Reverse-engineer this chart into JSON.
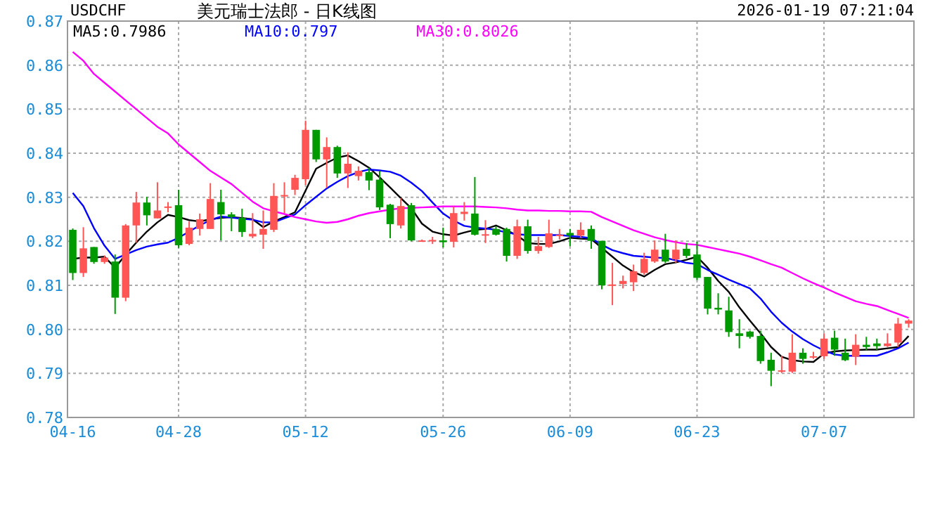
{
  "chart_data": {
    "type": "candlestick",
    "title": "美元瑞士法郎 - 日K线图",
    "annotations": [
      "USDCHF",
      "2026-01-19 07:21:04"
    ],
    "categories": [
      "04-16",
      null,
      null,
      null,
      null,
      null,
      null,
      null,
      null,
      null,
      "04-28",
      null,
      null,
      null,
      null,
      null,
      null,
      null,
      null,
      null,
      null,
      null,
      "05-12",
      null,
      null,
      null,
      null,
      null,
      null,
      null,
      null,
      null,
      null,
      null,
      null,
      "05-26",
      null,
      null,
      null,
      null,
      null,
      null,
      null,
      null,
      null,
      null,
      null,
      "06-09",
      null,
      null,
      null,
      null,
      null,
      null,
      null,
      null,
      null,
      null,
      null,
      "06-23",
      null,
      null,
      null,
      null,
      null,
      null,
      null,
      null,
      null,
      null,
      null,
      "07-07",
      null,
      null,
      null,
      null,
      null,
      null,
      null,
      null
    ],
    "ohlc": [
      [
        0.8226,
        0.8229,
        0.8112,
        0.8128
      ],
      [
        0.8128,
        0.8232,
        0.8119,
        0.8184
      ],
      [
        0.8187,
        0.8187,
        0.8149,
        0.8153
      ],
      [
        0.8153,
        0.8168,
        0.8149,
        0.8163
      ],
      [
        0.8154,
        0.817,
        0.8035,
        0.8072
      ],
      [
        0.8072,
        0.8239,
        0.8064,
        0.8236
      ],
      [
        0.8236,
        0.8312,
        0.8197,
        0.8288
      ],
      [
        0.8288,
        0.8301,
        0.8236,
        0.8259
      ],
      [
        0.8252,
        0.8334,
        0.8252,
        0.827
      ],
      [
        0.8277,
        0.8289,
        0.8266,
        0.8279
      ],
      [
        0.8282,
        0.8317,
        0.8185,
        0.8191
      ],
      [
        0.8194,
        0.8245,
        0.8191,
        0.8231
      ],
      [
        0.8228,
        0.8263,
        0.8213,
        0.825
      ],
      [
        0.8228,
        0.8332,
        0.8228,
        0.8296
      ],
      [
        0.8289,
        0.8317,
        0.8202,
        0.8261
      ],
      [
        0.8261,
        0.8266,
        0.8223,
        0.8255
      ],
      [
        0.8253,
        0.8274,
        0.821,
        0.8221
      ],
      [
        0.8211,
        0.8264,
        0.8207,
        0.8217
      ],
      [
        0.8215,
        0.827,
        0.8183,
        0.8228
      ],
      [
        0.8226,
        0.8332,
        0.8221,
        0.8303
      ],
      [
        0.8303,
        0.8334,
        0.8264,
        0.8305
      ],
      [
        0.8317,
        0.8351,
        0.8305,
        0.8344
      ],
      [
        0.8341,
        0.8474,
        0.8328,
        0.8453
      ],
      [
        0.8453,
        0.8453,
        0.838,
        0.8386
      ],
      [
        0.8386,
        0.8436,
        0.8321,
        0.8414
      ],
      [
        0.8414,
        0.8417,
        0.8344,
        0.8354
      ],
      [
        0.8354,
        0.8402,
        0.8321,
        0.8376
      ],
      [
        0.8348,
        0.837,
        0.8338,
        0.836
      ],
      [
        0.8357,
        0.8367,
        0.8316,
        0.8338
      ],
      [
        0.834,
        0.836,
        0.8271,
        0.8277
      ],
      [
        0.8283,
        0.8285,
        0.8207,
        0.8239
      ],
      [
        0.8236,
        0.8298,
        0.8229,
        0.828
      ],
      [
        0.8282,
        0.8287,
        0.82,
        0.8202
      ],
      [
        0.8201,
        0.8204,
        0.82,
        0.8202
      ],
      [
        0.8201,
        0.821,
        0.8194,
        0.8203
      ],
      [
        0.8202,
        0.8231,
        0.8186,
        0.8198
      ],
      [
        0.8199,
        0.8279,
        0.8186,
        0.8264
      ],
      [
        0.8262,
        0.8289,
        0.8247,
        0.8267
      ],
      [
        0.8263,
        0.8346,
        0.8213,
        0.8215
      ],
      [
        0.8213,
        0.8248,
        0.8196,
        0.8216
      ],
      [
        0.8228,
        0.8234,
        0.8213,
        0.8215
      ],
      [
        0.8228,
        0.8231,
        0.8154,
        0.8167
      ],
      [
        0.8167,
        0.8249,
        0.816,
        0.8234
      ],
      [
        0.8234,
        0.8249,
        0.8172,
        0.8178
      ],
      [
        0.8178,
        0.821,
        0.8172,
        0.8189
      ],
      [
        0.8187,
        0.8249,
        0.8185,
        0.8218
      ],
      [
        0.8214,
        0.8228,
        0.8204,
        0.8215
      ],
      [
        0.8219,
        0.8228,
        0.8189,
        0.8213
      ],
      [
        0.8213,
        0.8243,
        0.8209,
        0.8226
      ],
      [
        0.8228,
        0.8236,
        0.8183,
        0.8201
      ],
      [
        0.8201,
        0.8201,
        0.8091,
        0.81
      ],
      [
        0.81,
        0.8151,
        0.8055,
        0.8102
      ],
      [
        0.8103,
        0.8122,
        0.8093,
        0.811
      ],
      [
        0.8107,
        0.8147,
        0.8087,
        0.8132
      ],
      [
        0.8128,
        0.8174,
        0.8124,
        0.816
      ],
      [
        0.8154,
        0.8202,
        0.8151,
        0.8181
      ],
      [
        0.8181,
        0.8217,
        0.8151,
        0.8154
      ],
      [
        0.8159,
        0.8202,
        0.8151,
        0.8181
      ],
      [
        0.8183,
        0.8196,
        0.8162,
        0.8167
      ],
      [
        0.817,
        0.8199,
        0.8112,
        0.8117
      ],
      [
        0.8119,
        0.8119,
        0.8034,
        0.8047
      ],
      [
        0.8049,
        0.8082,
        0.8034,
        0.8045
      ],
      [
        0.8043,
        0.8074,
        0.7983,
        0.7994
      ],
      [
        0.7991,
        0.8023,
        0.7957,
        0.7985
      ],
      [
        0.7995,
        0.7997,
        0.7979,
        0.7983
      ],
      [
        0.7985,
        0.7997,
        0.7922,
        0.7928
      ],
      [
        0.7931,
        0.7947,
        0.7871,
        0.7906
      ],
      [
        0.7905,
        0.794,
        0.7901,
        0.7907
      ],
      [
        0.7904,
        0.7989,
        0.7901,
        0.7947
      ],
      [
        0.7947,
        0.7957,
        0.7922,
        0.7933
      ],
      [
        0.7937,
        0.7949,
        0.7933,
        0.7939
      ],
      [
        0.7939,
        0.7991,
        0.7933,
        0.7979
      ],
      [
        0.7981,
        0.7997,
        0.794,
        0.7954
      ],
      [
        0.7947,
        0.7979,
        0.7928,
        0.793
      ],
      [
        0.7938,
        0.7989,
        0.7919,
        0.7965
      ],
      [
        0.7965,
        0.7983,
        0.7953,
        0.796
      ],
      [
        0.7968,
        0.7979,
        0.7953,
        0.7962
      ],
      [
        0.7962,
        0.7991,
        0.796,
        0.7968
      ],
      [
        0.797,
        0.8026,
        0.796,
        0.8013
      ],
      [
        0.8013,
        0.8023,
        0.8004,
        0.802
      ]
    ],
    "colors": [
      "#009900",
      "#ff5555",
      "#009900",
      "#ff5555",
      "#009900",
      "#ff5555",
      "#ff5555",
      "#009900",
      "#ff5555",
      "#ff5555",
      "#009900",
      "#ff5555",
      "#ff5555",
      "#ff5555",
      "#009900",
      "#009900",
      "#009900",
      "#ff5555",
      "#ff5555",
      "#ff5555",
      "#ff5555",
      "#ff5555",
      "#ff5555",
      "#009900",
      "#ff5555",
      "#009900",
      "#ff5555",
      "#ff5555",
      "#009900",
      "#009900",
      "#009900",
      "#ff5555",
      "#009900",
      "#ff5555",
      "#ff5555",
      "#009900",
      "#ff5555",
      "#ff5555",
      "#009900",
      "#ff5555",
      "#009900",
      "#009900",
      "#ff5555",
      "#009900",
      "#ff5555",
      "#ff5555",
      "#ff5555",
      "#009900",
      "#ff5555",
      "#009900",
      "#009900",
      "#ff5555",
      "#ff5555",
      "#ff5555",
      "#ff5555",
      "#ff5555",
      "#009900",
      "#ff5555",
      "#009900",
      "#009900",
      "#009900",
      "#009900",
      "#009900",
      "#009900",
      "#009900",
      "#009900",
      "#009900",
      "#ff5555",
      "#ff5555",
      "#009900",
      "#ff5555",
      "#ff5555",
      "#009900",
      "#009900",
      "#ff5555",
      "#009900",
      "#009900",
      "#ff5555",
      "#ff5555",
      "#ff5555"
    ],
    "series": [
      {
        "name": "MA5:0.7986",
        "color": "#000000",
        "type": "line",
        "values": [
          0.816,
          0.8163,
          0.8163,
          0.8165,
          0.814,
          0.817,
          0.8197,
          0.8222,
          0.8243,
          0.826,
          0.8255,
          0.8248,
          0.8245,
          0.825,
          0.8253,
          0.8255,
          0.8253,
          0.825,
          0.8232,
          0.8245,
          0.8255,
          0.8266,
          0.8315,
          0.8365,
          0.8378,
          0.839,
          0.8395,
          0.8382,
          0.8367,
          0.8345,
          0.8322,
          0.8298,
          0.8275,
          0.824,
          0.8222,
          0.8216,
          0.8213,
          0.822,
          0.8226,
          0.8228,
          0.8236,
          0.8225,
          0.8213,
          0.8196,
          0.8194,
          0.8194,
          0.82,
          0.8208,
          0.8206,
          0.8205,
          0.8185,
          0.8165,
          0.8145,
          0.813,
          0.812,
          0.8135,
          0.8148,
          0.8152,
          0.8158,
          0.8165,
          0.814,
          0.811,
          0.8085,
          0.805,
          0.802,
          0.7991,
          0.796,
          0.7938,
          0.793,
          0.7927,
          0.7926,
          0.7945,
          0.795,
          0.7952,
          0.7953,
          0.7954,
          0.7954,
          0.7957,
          0.796,
          0.7985
        ]
      },
      {
        "name": "MA10:0.797",
        "color": "#0000ff",
        "type": "line",
        "values": [
          0.831,
          0.828,
          0.823,
          0.819,
          0.816,
          0.817,
          0.818,
          0.8188,
          0.8193,
          0.8197,
          0.8208,
          0.8222,
          0.8236,
          0.8248,
          0.8256,
          0.8254,
          0.8251,
          0.8249,
          0.8243,
          0.8243,
          0.8252,
          0.8261,
          0.8282,
          0.8301,
          0.832,
          0.8335,
          0.8348,
          0.8357,
          0.8363,
          0.8361,
          0.8358,
          0.8349,
          0.8333,
          0.8314,
          0.8288,
          0.8263,
          0.8247,
          0.8235,
          0.8231,
          0.8229,
          0.8226,
          0.822,
          0.8216,
          0.8214,
          0.8214,
          0.8214,
          0.8214,
          0.8212,
          0.821,
          0.8207,
          0.8192,
          0.818,
          0.8173,
          0.8167,
          0.8165,
          0.8163,
          0.8162,
          0.8157,
          0.8151,
          0.8148,
          0.8135,
          0.8124,
          0.8113,
          0.8103,
          0.8093,
          0.807,
          0.804,
          0.8015,
          0.7995,
          0.7978,
          0.7964,
          0.7952,
          0.7943,
          0.794,
          0.794,
          0.794,
          0.794,
          0.7948,
          0.7957,
          0.797
        ]
      },
      {
        "name": "MA30:0.8026",
        "color": "#ff00ff",
        "type": "line",
        "values": [
          0.863,
          0.861,
          0.858,
          0.856,
          0.854,
          0.852,
          0.85,
          0.848,
          0.846,
          0.8445,
          0.842,
          0.84,
          0.838,
          0.836,
          0.8345,
          0.833,
          0.831,
          0.829,
          0.8275,
          0.8268,
          0.8262,
          0.8255,
          0.825,
          0.8245,
          0.8242,
          0.8244,
          0.825,
          0.8258,
          0.8264,
          0.8268,
          0.8272,
          0.8275,
          0.8276,
          0.8277,
          0.8278,
          0.8279,
          0.8279,
          0.8279,
          0.8279,
          0.8278,
          0.8277,
          0.8275,
          0.8272,
          0.827,
          0.827,
          0.8269,
          0.8269,
          0.8268,
          0.8268,
          0.8267,
          0.8255,
          0.8245,
          0.8235,
          0.8225,
          0.8217,
          0.8209,
          0.8203,
          0.8198,
          0.8194,
          0.8192,
          0.8187,
          0.8182,
          0.8177,
          0.8172,
          0.8165,
          0.8157,
          0.8148,
          0.814,
          0.8128,
          0.8116,
          0.8105,
          0.8095,
          0.8084,
          0.8074,
          0.8064,
          0.8058,
          0.8053,
          0.8044,
          0.8035,
          0.8026
        ]
      }
    ],
    "ylim": [
      0.78,
      0.87
    ],
    "yticks": [
      0.78,
      0.79,
      {
        "value": 0.8,
        "label": "0.80"
      },
      0.81,
      0.82,
      0.83,
      0.84,
      0.85,
      0.86,
      0.87
    ],
    "grid": true,
    "legend": "top left"
  }
}
